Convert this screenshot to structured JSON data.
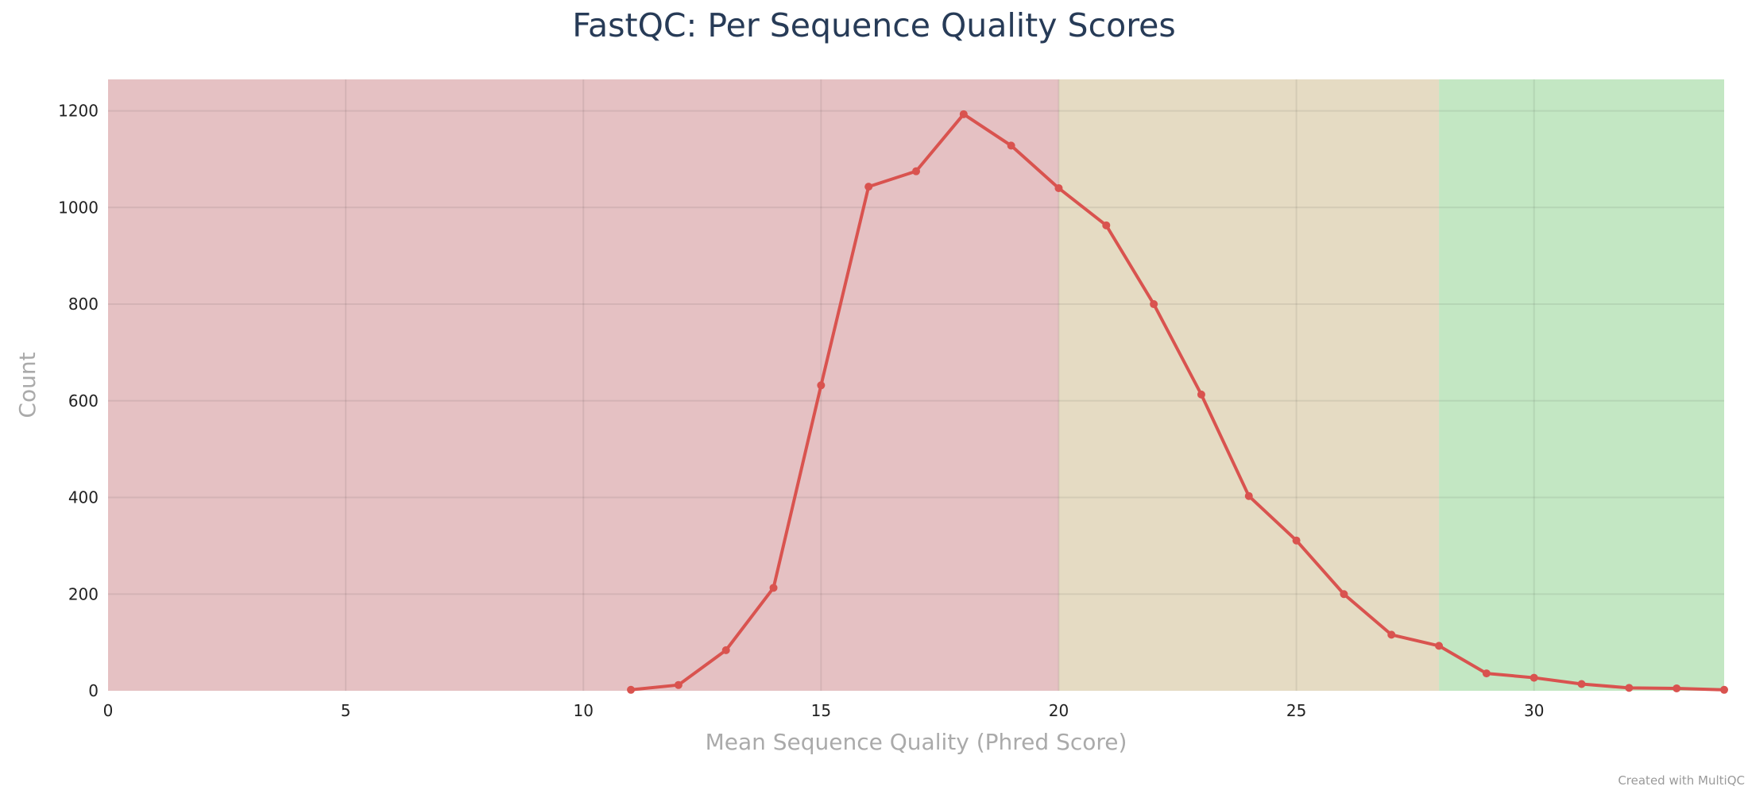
{
  "chart_data": {
    "type": "line",
    "title": "FastQC: Per Sequence Quality Scores",
    "xlabel": "Mean Sequence Quality (Phred Score)",
    "ylabel": "Count",
    "xlim": [
      0,
      34
    ],
    "ylim": [
      0,
      1265
    ],
    "x_ticks": [
      0,
      5,
      10,
      15,
      20,
      25,
      30
    ],
    "y_ticks": [
      0,
      200,
      400,
      600,
      800,
      1000,
      1200
    ],
    "grid": true,
    "bands": [
      {
        "from": 0,
        "to": 20,
        "color": "#e5c1c3"
      },
      {
        "from": 20,
        "to": 28,
        "color": "#e5dbc3"
      },
      {
        "from": 28,
        "to": 34,
        "color": "#c3e7c3"
      }
    ],
    "series": [
      {
        "color": "#d9534f",
        "x": [
          11,
          12,
          13,
          14,
          15,
          16,
          17,
          18,
          19,
          20,
          21,
          22,
          23,
          24,
          25,
          26,
          27,
          28,
          29,
          30,
          31,
          32,
          33,
          34
        ],
        "y": [
          2,
          12,
          84,
          213,
          632,
          1043,
          1075,
          1193,
          1128,
          1040,
          963,
          800,
          613,
          403,
          311,
          200,
          116,
          93,
          36,
          27,
          14,
          6,
          5,
          2
        ]
      }
    ]
  },
  "footer": {
    "credit": "Created with MultiQC"
  }
}
